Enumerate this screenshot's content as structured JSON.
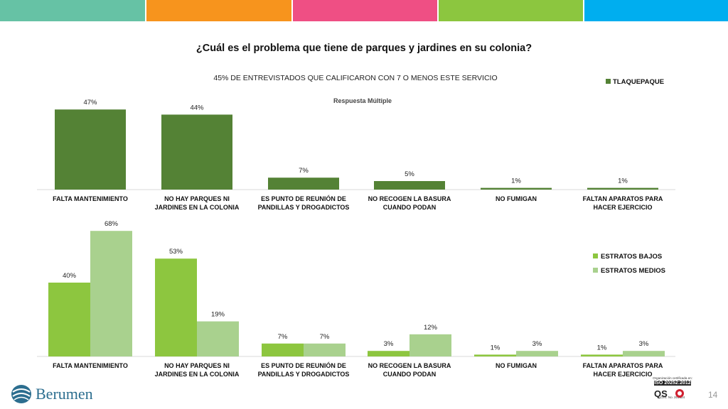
{
  "colors": {
    "topbar": [
      "#66c2a5",
      "#f7941d",
      "#ef4f84",
      "#8cc63f",
      "#00aeef"
    ],
    "tlaquepaque": "#548235",
    "bajos": "#8dc63f",
    "medios": "#a9d18e"
  },
  "header": {
    "title": "¿Cuál es el problema que tiene de parques y jardines en su colonia?",
    "subtitle": "45% DE ENTREVISTADOS QUE CALIFICARON CON 7 O MENOS ESTE SERVICIO",
    "note": "Respuesta Múltiple"
  },
  "chart_data": [
    {
      "type": "bar",
      "categories": [
        [
          "FALTA MANTENIMIENTO"
        ],
        [
          "NO HAY PARQUES NI",
          "JARDINES EN LA COLONIA"
        ],
        [
          "ES PUNTO DE REUNIÓN DE",
          "PANDILLAS Y DROGADICTOS"
        ],
        [
          "NO RECOGEN LA BASURA",
          "CUANDO PODAN"
        ],
        [
          "NO FUMIGAN"
        ],
        [
          "FALTAN APARATOS PARA",
          "HACER EJERCICIO"
        ]
      ],
      "series": [
        {
          "name": "TLAQUEPAQUE",
          "values": [
            47,
            44,
            7,
            5,
            1,
            1
          ],
          "labels": [
            "47%",
            "44%",
            "7%",
            "5%",
            "1%",
            "1%"
          ]
        }
      ],
      "legend_position": "top-right",
      "grid": false
    },
    {
      "type": "bar",
      "categories": [
        [
          "FALTA MANTENIMIENTO"
        ],
        [
          "NO HAY PARQUES NI",
          "JARDINES EN LA COLONIA"
        ],
        [
          "ES PUNTO DE REUNIÓN DE",
          "PANDILLAS Y DROGADICTOS"
        ],
        [
          "NO RECOGEN LA BASURA",
          "CUANDO PODAN"
        ],
        [
          "NO FUMIGAN"
        ],
        [
          "FALTAN APARATOS PARA",
          "HACER EJERCICIO"
        ]
      ],
      "series": [
        {
          "name": "ESTRATOS BAJOS",
          "values": [
            40,
            53,
            7,
            3,
            1,
            1
          ],
          "labels": [
            "40%",
            "53%",
            "7%",
            "3%",
            "1%",
            "1%"
          ]
        },
        {
          "name": "ESTRATOS MEDIOS",
          "values": [
            68,
            19,
            7,
            12,
            3,
            3
          ],
          "labels": [
            "68%",
            "19%",
            "7%",
            "12%",
            "3%",
            "3%"
          ]
        }
      ],
      "legend_position": "right",
      "grid": false
    }
  ],
  "footer": {
    "logo": "Berumen",
    "iso_top": "Organización certificada en:",
    "iso_label": "ISO 20252:2012",
    "iso_cert": "Cert. No. 201624",
    "page_number": "14"
  }
}
